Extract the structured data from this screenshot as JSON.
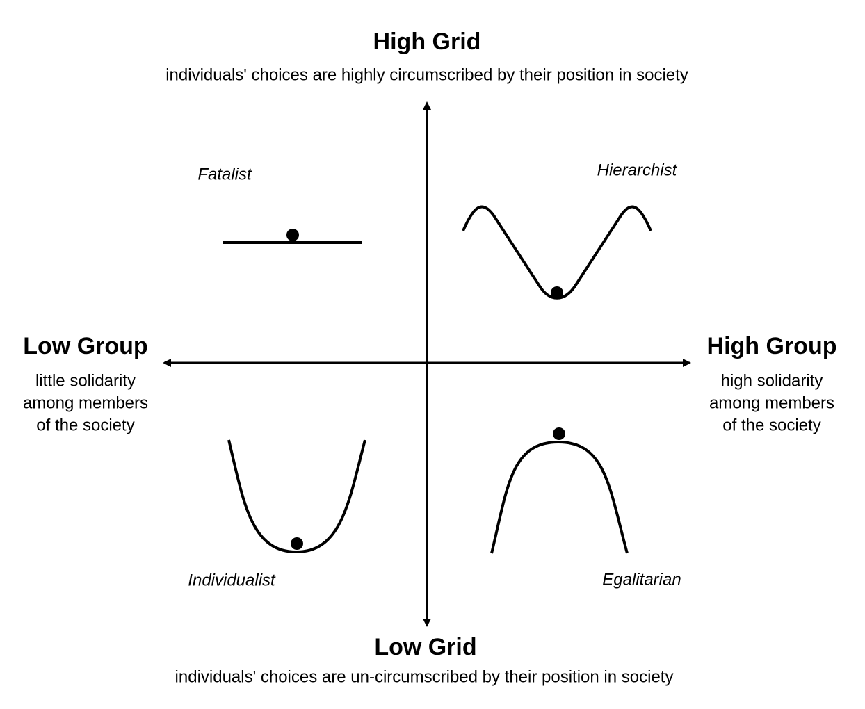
{
  "top": {
    "title": "High Grid",
    "subtitle": "individuals' choices are highly circumscribed by their position in society"
  },
  "bottom": {
    "title": "Low Grid",
    "subtitle": "individuals' choices are un-circumscribed by their position in society"
  },
  "left": {
    "title": "Low Group",
    "lines": [
      "little solidarity",
      "among members",
      "of the society"
    ]
  },
  "right": {
    "title": "High Group",
    "lines": [
      "high solidarity",
      "among members",
      "of the society"
    ]
  },
  "quadrants": [
    "Fatalist",
    "Hierarchist",
    "Individualist",
    "Egalitarian"
  ]
}
